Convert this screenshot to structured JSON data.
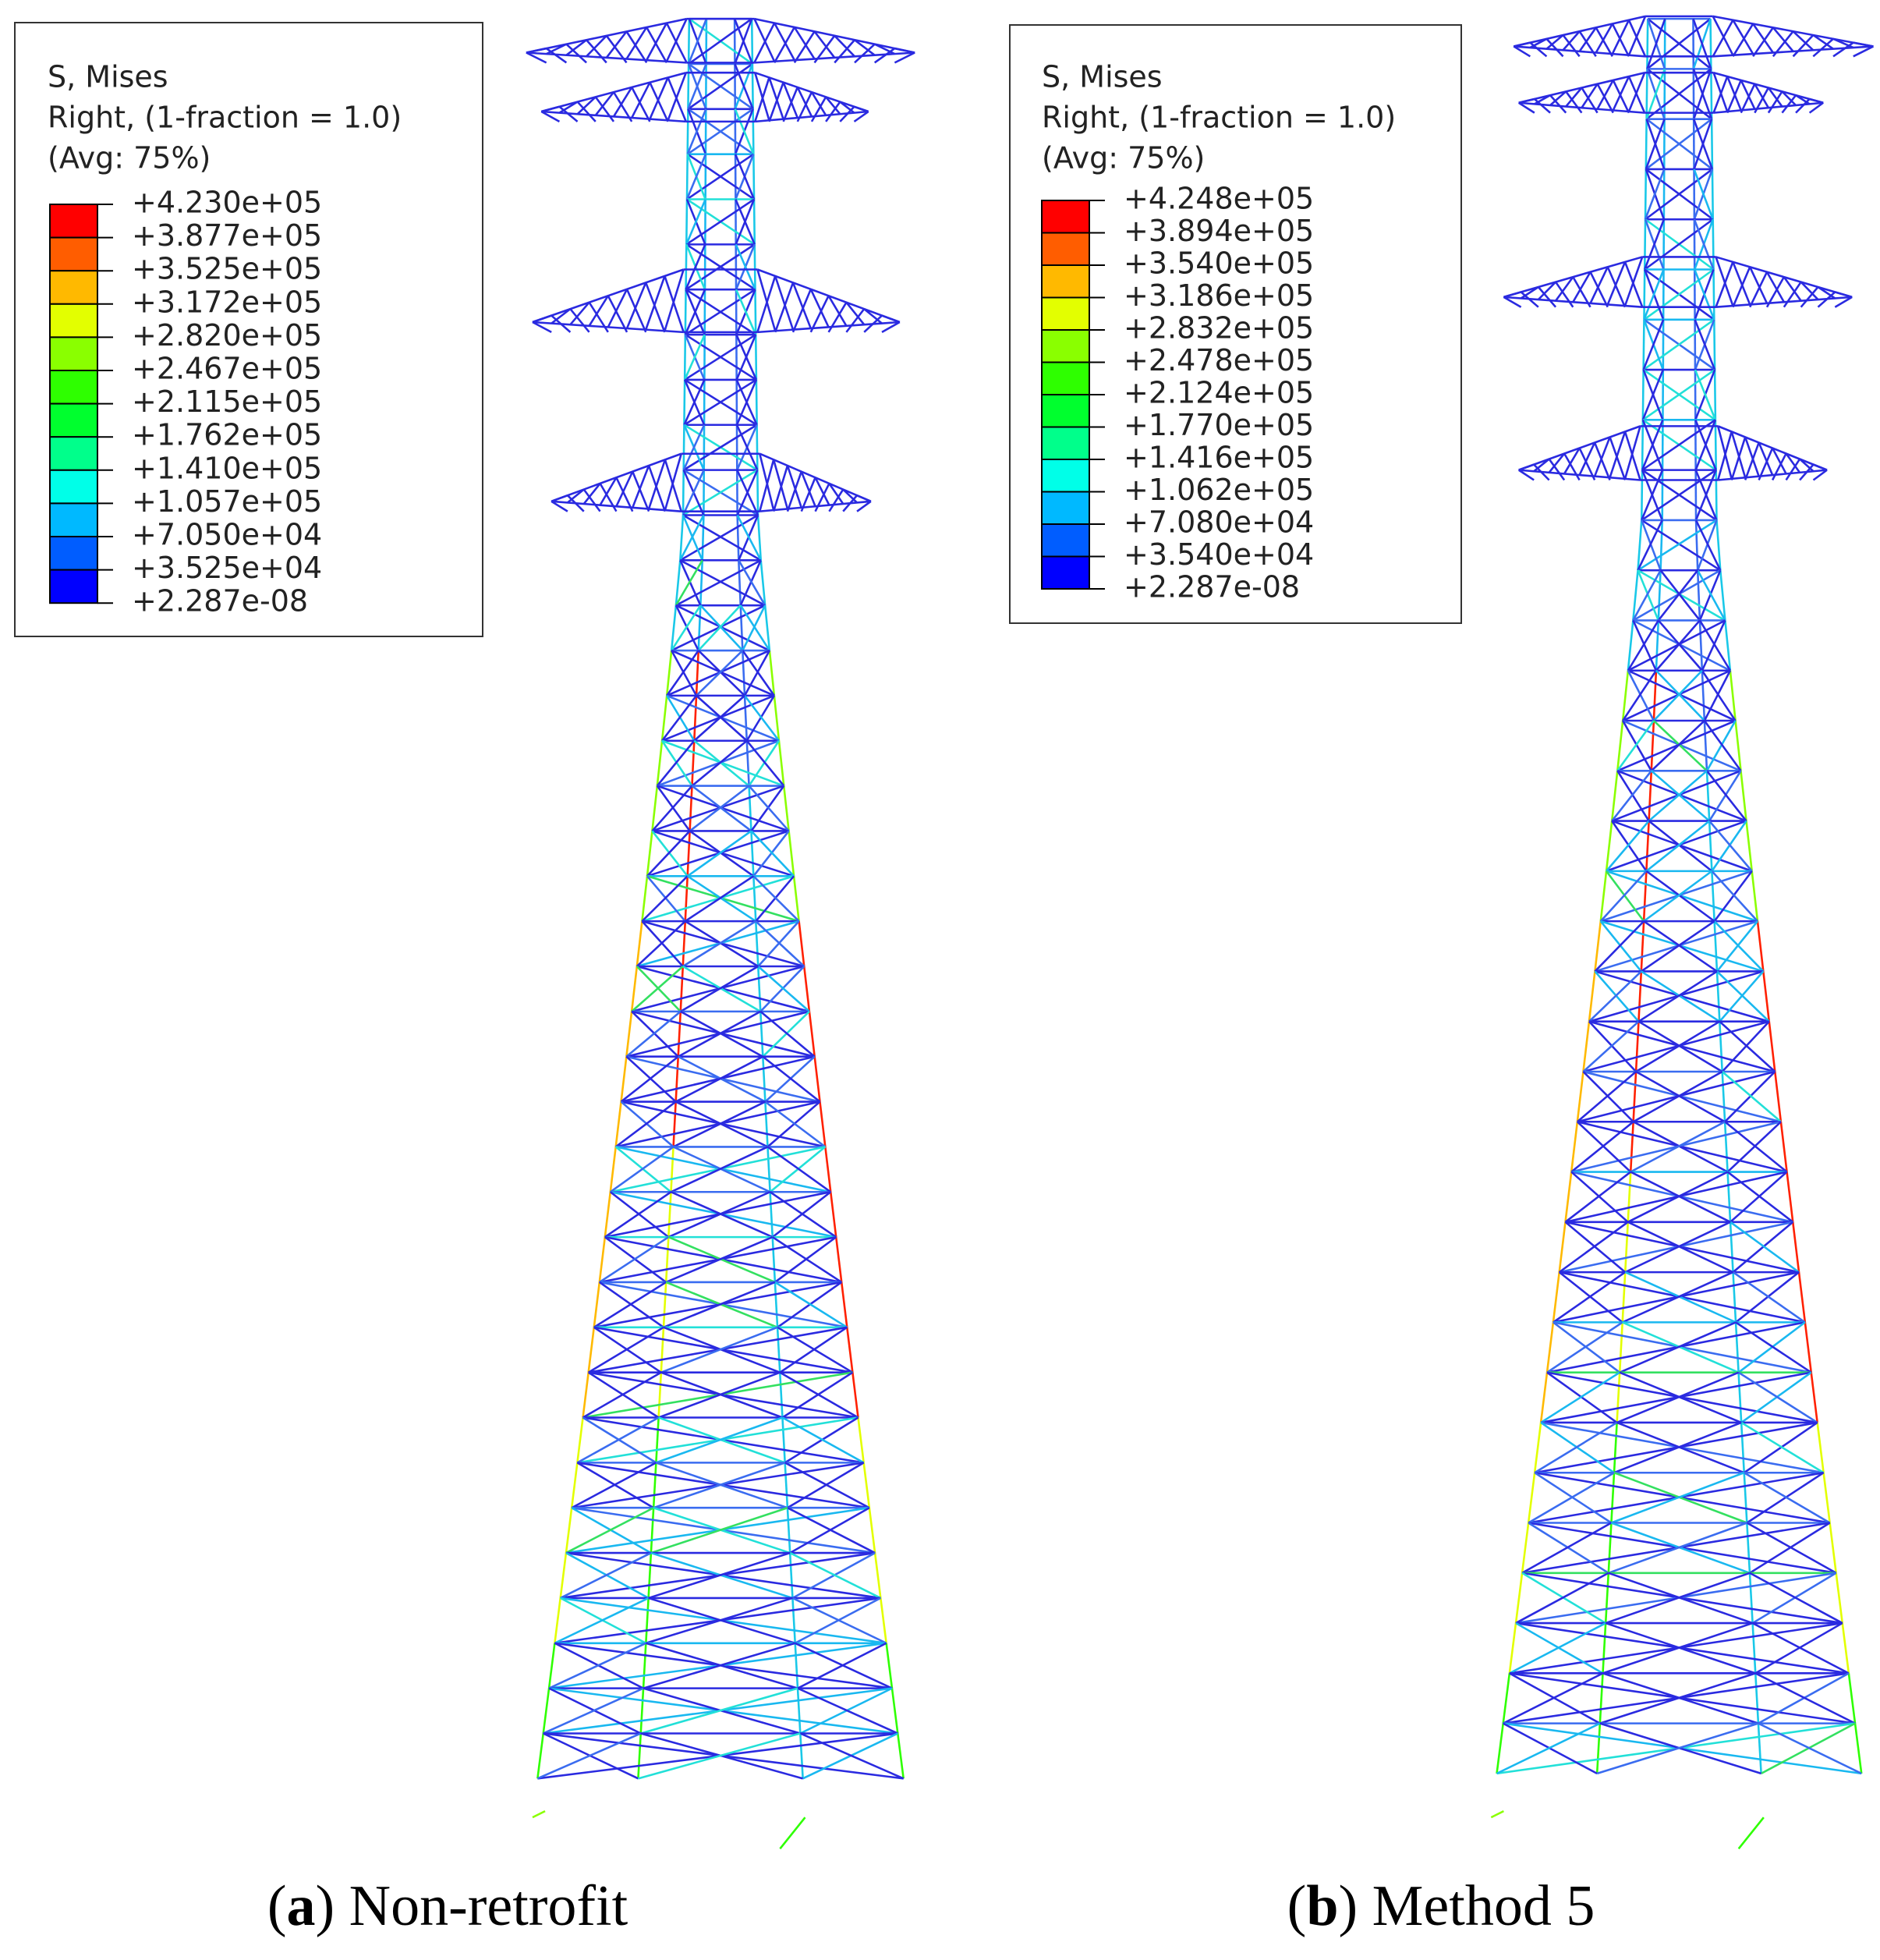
{
  "panels": [
    {
      "legend": {
        "lines": [
          "S, Mises",
          "Right, (1-fraction = 1.0)",
          "(Avg: 75%)"
        ],
        "levels": [
          "+4.230e+05",
          "+3.877e+05",
          "+3.525e+05",
          "+3.172e+05",
          "+2.820e+05",
          "+2.467e+05",
          "+2.115e+05",
          "+1.762e+05",
          "+1.410e+05",
          "+1.057e+05",
          "+7.050e+04",
          "+3.525e+04",
          "+2.287e-08"
        ],
        "colors": [
          "#ff0000",
          "#ff5d00",
          "#ffb900",
          "#e3ff00",
          "#8aff00",
          "#2eff00",
          "#00ff2e",
          "#00ff8b",
          "#00ffe8",
          "#00b9ff",
          "#005dff",
          "#0000ff"
        ]
      },
      "caption": [
        "(",
        "a",
        ") Non-retrofit"
      ]
    },
    {
      "legend": {
        "lines": [
          "S, Mises",
          "Right, (1-fraction = 1.0)",
          "(Avg: 75%)"
        ],
        "levels": [
          "+4.248e+05",
          "+3.894e+05",
          "+3.540e+05",
          "+3.186e+05",
          "+2.832e+05",
          "+2.478e+05",
          "+2.124e+05",
          "+1.770e+05",
          "+1.416e+05",
          "+1.062e+05",
          "+7.080e+04",
          "+3.540e+04",
          "+2.287e-08"
        ],
        "colors": [
          "#ff0000",
          "#ff5d00",
          "#ffb900",
          "#e3ff00",
          "#8aff00",
          "#2eff00",
          "#00ff2e",
          "#00ff8b",
          "#00ffe8",
          "#00b9ff",
          "#005dff",
          "#0000ff"
        ]
      },
      "caption": [
        "(",
        "b",
        ") Method 5"
      ]
    }
  ]
}
